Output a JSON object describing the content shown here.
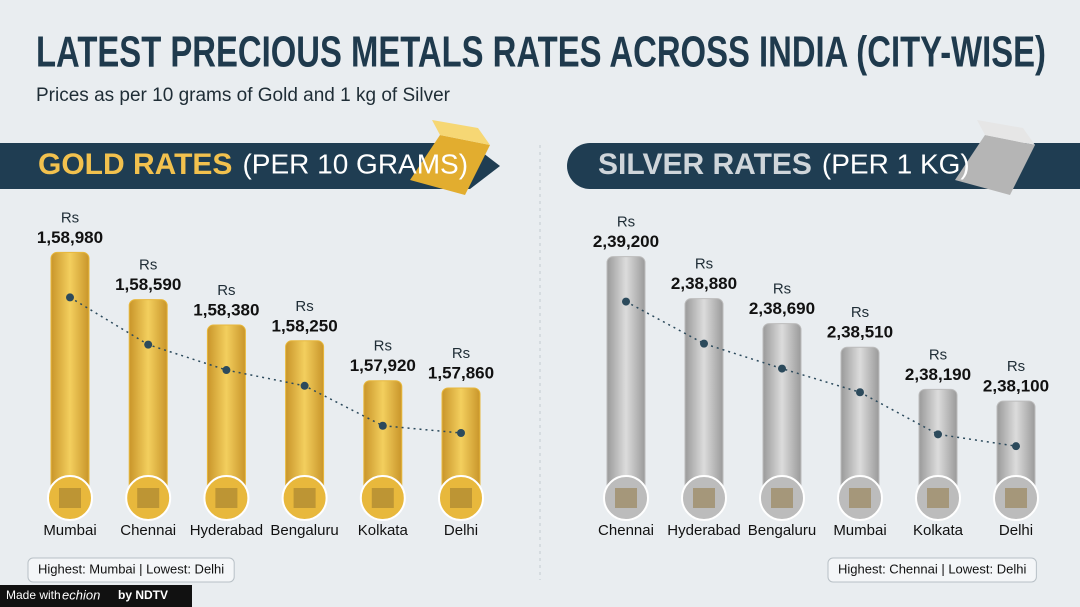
{
  "title": "LATEST PRECIOUS METALS RATES ACROSS INDIA (CITY-WISE)",
  "subtitle": "Prices as per 10 grams of Gold and 1 kg of Silver",
  "footer": {
    "made_with": "Made with",
    "brand": "echion",
    "by": "by NDTV"
  },
  "chart_data": [
    {
      "type": "bar",
      "title": "GOLD RATES",
      "subtitle": "(PER 10 GRAMS)",
      "currency_label": "Rs",
      "categories": [
        "Mumbai",
        "Chennai",
        "Hyderabad",
        "Bengaluru",
        "Kolkata",
        "Delhi"
      ],
      "values": [
        158980,
        158590,
        158380,
        158250,
        157920,
        157860
      ],
      "value_labels": [
        "1,58,980",
        "1,58,590",
        "1,58,380",
        "1,58,250",
        "1,57,920",
        "1,57,860"
      ],
      "color": "#e8b83c",
      "ylim": [
        157100,
        159000
      ],
      "note": "Highest: Mumbai | Lowest: Delhi"
    },
    {
      "type": "bar",
      "title": "SILVER RATES",
      "subtitle": "(PER 1 KG)",
      "currency_label": "Rs",
      "categories": [
        "Chennai",
        "Hyderabad",
        "Bengaluru",
        "Mumbai",
        "Kolkata",
        "Delhi"
      ],
      "values": [
        239200,
        238880,
        238690,
        238510,
        238190,
        238100
      ],
      "value_labels": [
        "2,39,200",
        "2,38,880",
        "2,38,690",
        "2,38,510",
        "2,38,190",
        "2,38,100"
      ],
      "color": "#bcbcbc",
      "ylim": [
        237500,
        239250
      ],
      "note": "Highest: Chennai | Lowest: Delhi"
    }
  ]
}
